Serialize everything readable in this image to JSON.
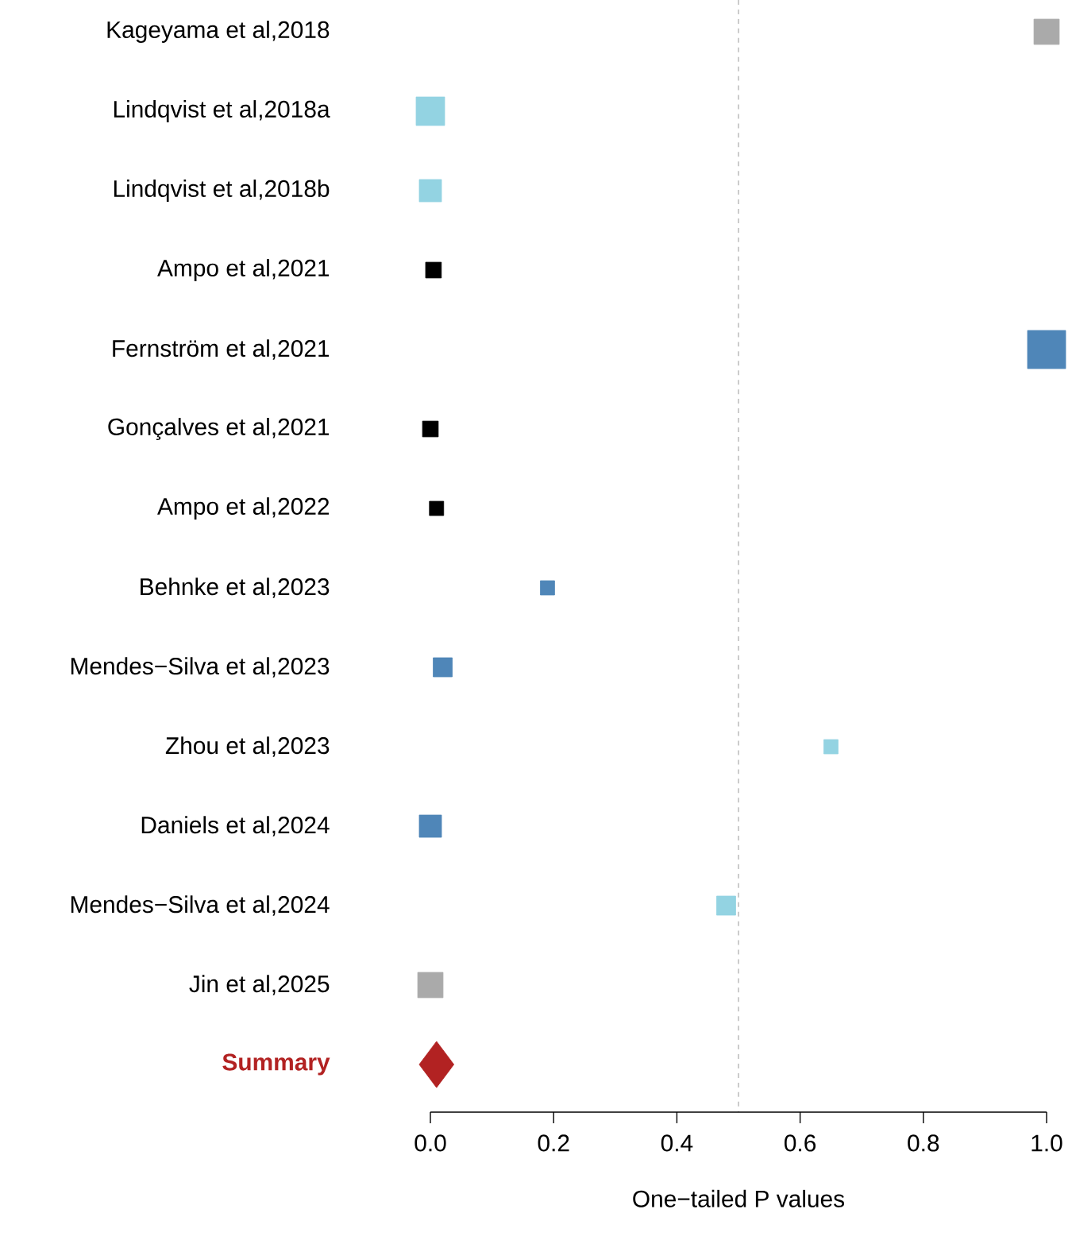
{
  "chart_data": {
    "type": "bubble",
    "orientation": "horizontal",
    "xlabel": "One−tailed P values",
    "categories": [
      "Kageyama et al,2018",
      "Lindqvist et al,2018a",
      "Lindqvist et al,2018b",
      "Ampo et al,2021",
      "Fernström et al,2021",
      "Gonçalves et al,2021",
      "Ampo et al,2022",
      "Behnke et al,2023",
      "Mendes−Silva et al,2023",
      "Zhou et al,2023",
      "Daniels et al,2024",
      "Mendes−Silva et al,2024",
      "Jin et al,2025",
      "Summary"
    ],
    "series": [
      {
        "marker": "square",
        "colors": [
          "#aaaaaa",
          "#93d3e2",
          "#93d3e2",
          "#000000",
          "#4f86b8",
          "#000000",
          "#000000",
          "#4f86b8",
          "#4f86b8",
          "#93d3e2",
          "#4f86b8",
          "#93d3e2",
          "#aaaaaa",
          null
        ],
        "values": [
          1.0,
          0.0,
          0.0,
          0.005,
          1.0,
          0.0,
          0.01,
          0.19,
          0.02,
          0.65,
          0.0,
          0.48,
          0.0,
          null
        ],
        "sizes": [
          0.44,
          0.56,
          0.34,
          0.17,
          1,
          0.17,
          0.14,
          0.14,
          0.25,
          0.14,
          0.34,
          0.25,
          0.44,
          null
        ]
      },
      {
        "marker": "diamond",
        "color": "#b22222",
        "values": [
          null,
          null,
          null,
          null,
          null,
          null,
          null,
          null,
          null,
          null,
          null,
          null,
          null,
          0.01
        ],
        "sizes": [
          null,
          null,
          null,
          null,
          null,
          null,
          null,
          null,
          null,
          null,
          null,
          null,
          null,
          0.59
        ]
      }
    ],
    "xlim": [
      0,
      1
    ],
    "xticks": [
      {
        "value": 0,
        "label": "0.0"
      },
      {
        "value": 0.2,
        "label": "0.2"
      },
      {
        "value": 0.4,
        "label": "0.4"
      },
      {
        "value": 0.6,
        "label": "0.6"
      },
      {
        "value": 0.8,
        "label": "0.8"
      },
      {
        "value": 1.0,
        "label": "1.0"
      }
    ],
    "ref_lines": [
      {
        "axis": "x",
        "value": 0.5,
        "color": "#aaaaaa",
        "line_style": "dashed"
      }
    ],
    "grid": false
  }
}
